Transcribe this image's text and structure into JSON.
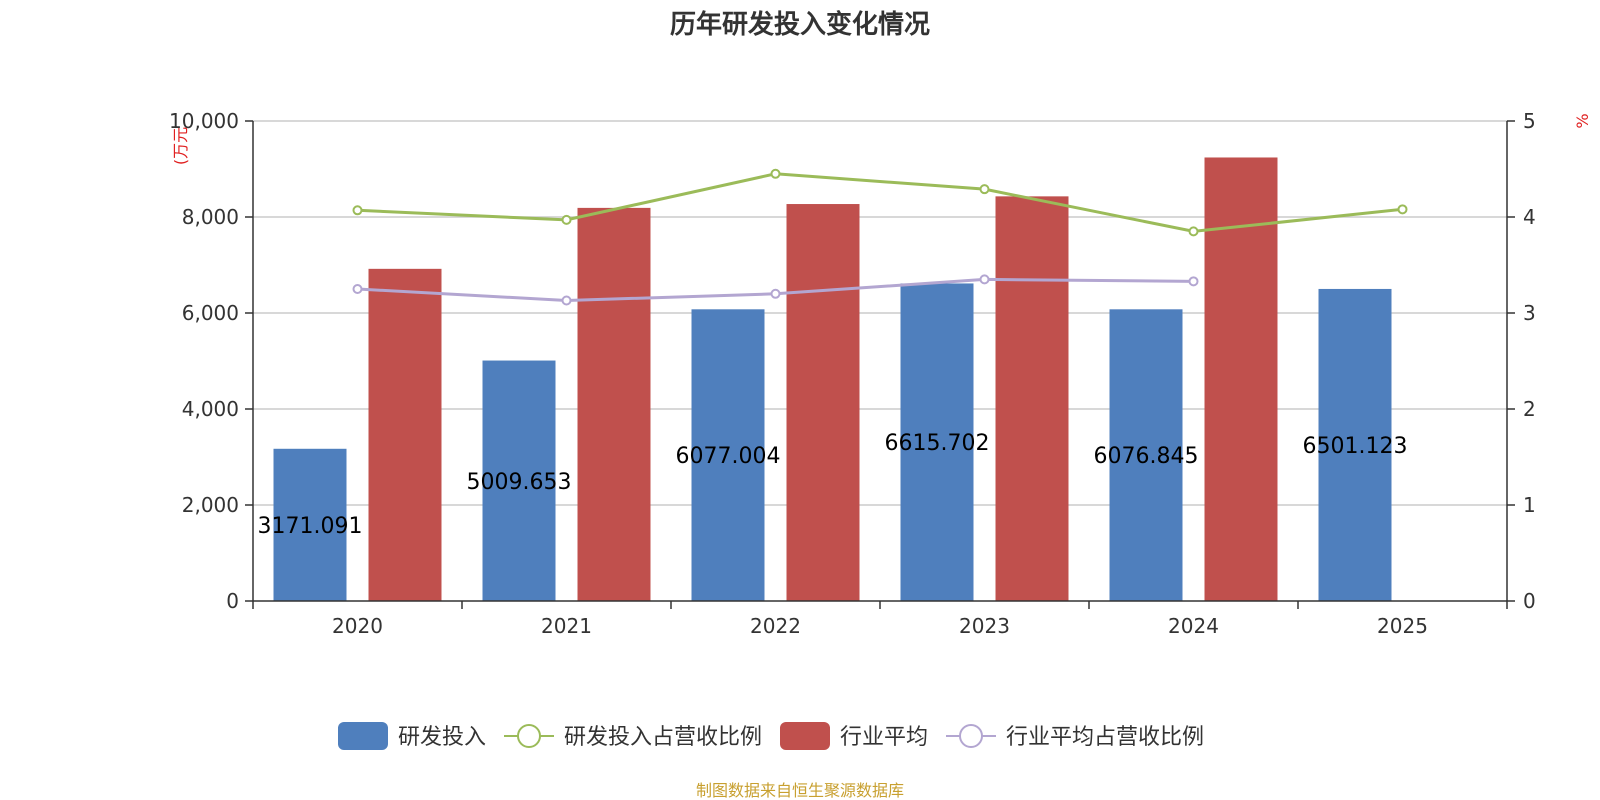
{
  "chart_data": {
    "type": "bar",
    "title": "历年研发投入变化情况",
    "categories": [
      "2020",
      "2021",
      "2022",
      "2023",
      "2024",
      "2025"
    ],
    "y_left": {
      "unit": "(万元",
      "min": 0,
      "max": 10000,
      "ticks": [
        "0",
        "2,000",
        "4,000",
        "6,000",
        "8,000",
        "10,000"
      ]
    },
    "y_right": {
      "unit": "%",
      "min": 0,
      "max": 5,
      "ticks": [
        "0",
        "1",
        "2",
        "3",
        "4",
        "5"
      ]
    },
    "grid": true,
    "legend_position": "bottom",
    "series": [
      {
        "name": "研发投入",
        "kind": "bar",
        "color": "#4f7fbd",
        "values": [
          3171.091,
          5009.653,
          6077.004,
          6615.702,
          6076.845,
          6501.123
        ],
        "labels": [
          "3171.091",
          "5009.653",
          "6077.004",
          "6615.702",
          "6076.845",
          "6501.123"
        ]
      },
      {
        "name": "行业平均",
        "kind": "bar",
        "color": "#c0504d",
        "values": [
          6920,
          8190,
          8270,
          8430,
          9240,
          null
        ]
      },
      {
        "name": "研发投入占营收比例",
        "kind": "line",
        "axis": "right",
        "color": "#9bbb59",
        "values": [
          4.07,
          3.97,
          4.45,
          4.29,
          3.85,
          4.08
        ]
      },
      {
        "name": "行业平均占营收比例",
        "kind": "line",
        "axis": "right",
        "color": "#b3a6d1",
        "values": [
          3.25,
          3.13,
          3.2,
          3.35,
          3.33,
          null
        ]
      }
    ]
  },
  "footer": {
    "source": "制图数据来自恒生聚源数据库"
  }
}
